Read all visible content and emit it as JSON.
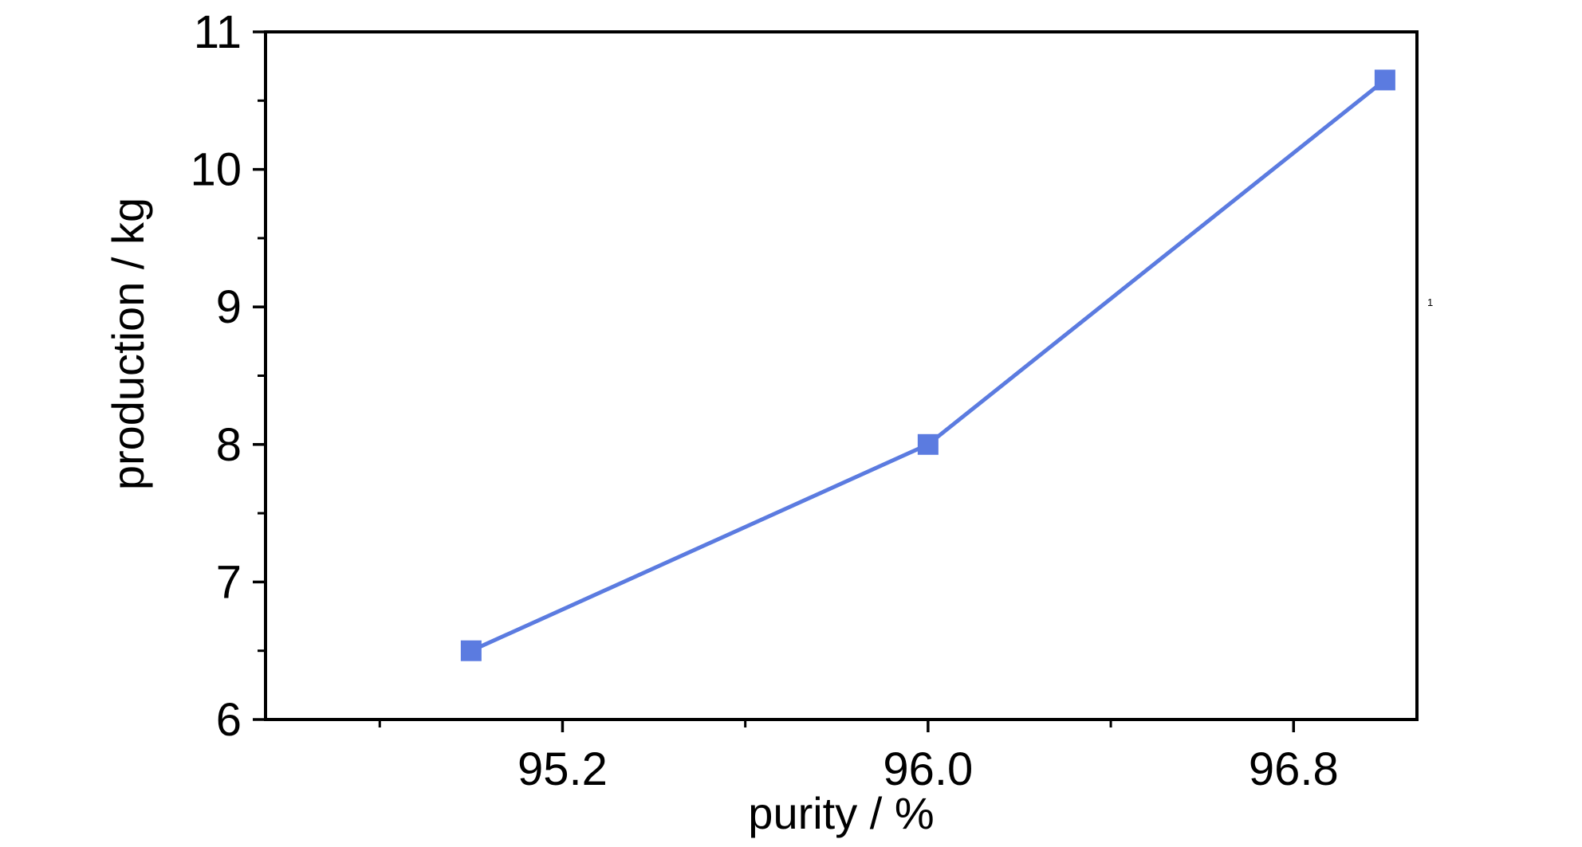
{
  "chart_data": {
    "type": "line",
    "title": "",
    "xlabel": "purity / %",
    "ylabel": "production / kg",
    "xlim": [
      94.55,
      97.07
    ],
    "ylim": [
      6,
      11
    ],
    "x_ticks": [
      {
        "value": 95.2,
        "label": "95.2"
      },
      {
        "value": 96.0,
        "label": "96.0"
      },
      {
        "value": 96.8,
        "label": "96.8"
      }
    ],
    "x_minor_ticks": [
      94.8,
      95.6,
      96.4,
      97.2
    ],
    "y_ticks": [
      {
        "value": 6,
        "label": "6"
      },
      {
        "value": 7,
        "label": "7"
      },
      {
        "value": 8,
        "label": "8"
      },
      {
        "value": 9,
        "label": "9"
      },
      {
        "value": 10,
        "label": "10"
      },
      {
        "value": 11,
        "label": "11"
      }
    ],
    "y_minor_ticks": [
      6.5,
      7.5,
      8.5,
      9.5,
      10.5
    ],
    "grid": false,
    "legend": "none",
    "series": [
      {
        "marker": "square",
        "color": "#5B7BE0",
        "points": [
          {
            "x": 95.0,
            "y": 6.5
          },
          {
            "x": 96.0,
            "y": 8.0
          },
          {
            "x": 97.0,
            "y": 10.65
          }
        ]
      }
    ],
    "annotation": "1"
  }
}
